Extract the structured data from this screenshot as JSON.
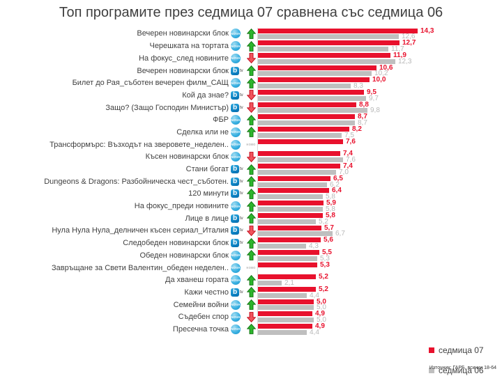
{
  "title": "Топ програмите през седмица 07 сравнена със седмица 06",
  "legend": {
    "week07": {
      "label": "седмица 07",
      "color": "#e8112d"
    },
    "week06": {
      "label": "седмица 06",
      "color": "#bfbfbf"
    }
  },
  "source": "Източник: ГАРБ, всички 18-64",
  "icons": {
    "nova_text": "NOVA",
    "btv_b": "b",
    "btv_tv": "tv",
    "new_label": "ново"
  },
  "colors": {
    "bar_week07": "#e8112d",
    "bar_week06": "#bfbfbf",
    "value_week07": "#e8112d",
    "value_week06": "#b8b8b8",
    "arrow_up": "#2db52d",
    "arrow_down": "#f0545c"
  },
  "chart_data": {
    "type": "bar",
    "orientation": "horizontal",
    "xlim": [
      0,
      15
    ],
    "grid": false,
    "legend_position": "bottom-right",
    "series_names": [
      "седмица 07",
      "седмица 06"
    ],
    "rows": [
      {
        "label": "Вечерен новинарски блок",
        "channel": "nova",
        "trend": "up",
        "week07": 14.3,
        "week06": 12.6
      },
      {
        "label": "Черешката на тортата",
        "channel": "nova",
        "trend": "up",
        "week07": 12.7,
        "week06": 11.7
      },
      {
        "label": "На фокус_след новините",
        "channel": "nova",
        "trend": "down",
        "week07": 11.9,
        "week06": 12.3
      },
      {
        "label": "Вечерен новинарски блок",
        "channel": "btv",
        "trend": "up",
        "week07": 10.6,
        "week06": 10.2
      },
      {
        "label": "Билет до Рая_съботен вечерен филм_САЩ",
        "channel": "nova",
        "trend": "up",
        "week07": 10.0,
        "week06": 8.3
      },
      {
        "label": "Кой да знае?",
        "channel": "btv",
        "trend": "down",
        "week07": 9.5,
        "week06": 9.7
      },
      {
        "label": "Защо? (Защо Господин Министър)",
        "channel": "btv",
        "trend": "down",
        "week07": 8.8,
        "week06": 9.8
      },
      {
        "label": "ФБР",
        "channel": "nova",
        "trend": "up",
        "week07": 8.7,
        "week06": 8.7
      },
      {
        "label": "Сделка или не",
        "channel": "nova",
        "trend": "up",
        "week07": 8.2,
        "week06": 7.5
      },
      {
        "label": "Трансформърс: Възходът на зверовете_неделен..",
        "channel": "nova",
        "trend": "new",
        "week07": 7.6,
        "week06": null
      },
      {
        "label": "Късен новинарски блок",
        "channel": "nova",
        "trend": "down",
        "week07": 7.4,
        "week06": 7.6
      },
      {
        "label": "Стани богат",
        "channel": "btv",
        "trend": "up",
        "week07": 7.4,
        "week06": 7.0
      },
      {
        "label": "Dungeons & Dragons: Разбойническа чест_съботен.",
        "channel": "btv",
        "trend": "up",
        "week07": 6.5,
        "week06": 6.2
      },
      {
        "label": "120 минути",
        "channel": "btv",
        "trend": "up",
        "week07": 6.4,
        "week06": 5.8
      },
      {
        "label": "На фокус_преди новините",
        "channel": "nova",
        "trend": "up",
        "week07": 5.9,
        "week06": 5.8
      },
      {
        "label": "Лице в лице",
        "channel": "btv",
        "trend": "up",
        "week07": 5.8,
        "week06": 5.2
      },
      {
        "label": "Нула Нула Нула_делничен късен сериал_Италия",
        "channel": "btv",
        "trend": "down",
        "week07": 5.7,
        "week06": 6.7
      },
      {
        "label": "Следобеден новинарски блок",
        "channel": "btv",
        "trend": "up",
        "week07": 5.6,
        "week06": 4.3
      },
      {
        "label": "Обеден новинарски блок",
        "channel": "nova",
        "trend": "up",
        "week07": 5.5,
        "week06": 5.3
      },
      {
        "label": "Завръщане за Свети Валентин_обеден неделен..",
        "channel": "nova",
        "trend": "new",
        "week07": 5.3,
        "week06": null
      },
      {
        "label": "Да хванеш гората",
        "channel": "nova",
        "trend": "up",
        "week07": 5.2,
        "week06": 2.1
      },
      {
        "label": "Кажи честно",
        "channel": "btv",
        "trend": "up",
        "week07": 5.2,
        "week06": 4.4
      },
      {
        "label": "Семейни войни",
        "channel": "nova",
        "trend": "up",
        "week07": 5.0,
        "week06": 5.0
      },
      {
        "label": "Съдебен спор",
        "channel": "nova",
        "trend": "down",
        "week07": 4.9,
        "week06": 5.0
      },
      {
        "label": "Пресечна точка",
        "channel": "nova",
        "trend": "up",
        "week07": 4.9,
        "week06": 4.4
      }
    ]
  }
}
